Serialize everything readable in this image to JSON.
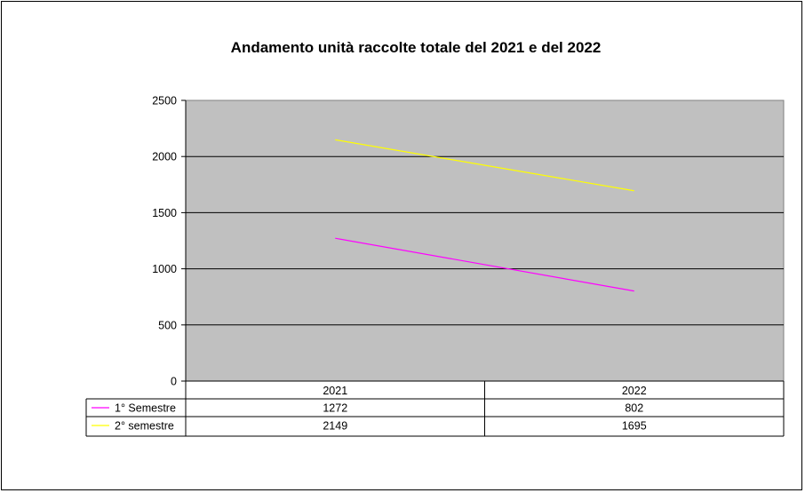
{
  "chart_data": {
    "type": "line",
    "title": "Andamento unità raccolte totale del  2021 e del 2022",
    "xlabel": "",
    "ylabel": "",
    "categories": [
      "2021",
      "2022"
    ],
    "series": [
      {
        "name": "1° Semestre",
        "values": [
          1272,
          802
        ],
        "color": "#ff00ff"
      },
      {
        "name": "2° semestre",
        "values": [
          2149,
          1695
        ],
        "color": "#ffff00"
      }
    ],
    "ylim": [
      0,
      2500
    ],
    "yticks": [
      "0",
      "500",
      "1000",
      "1500",
      "2000",
      "2500"
    ],
    "grid": true,
    "plot_background": "#c0c0c0",
    "legend": "data-table-below"
  }
}
